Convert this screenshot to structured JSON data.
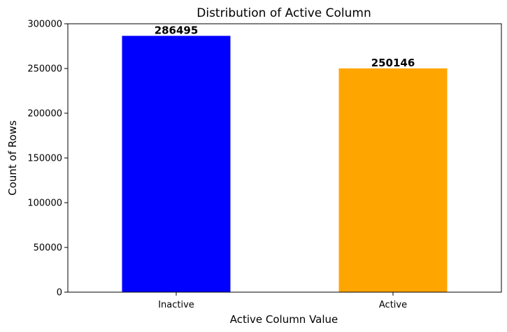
{
  "chart_data": {
    "type": "bar",
    "title": "Distribution of Active Column",
    "xlabel": "Active Column Value",
    "ylabel": "Count of Rows",
    "categories": [
      "Inactive",
      "Active"
    ],
    "values": [
      286495,
      250146
    ],
    "colors": [
      "#0000ff",
      "#ffa500"
    ],
    "ylim": [
      0,
      300000
    ],
    "yticks": [
      0,
      50000,
      100000,
      150000,
      200000,
      250000,
      300000
    ],
    "grid": false,
    "legend": "none"
  }
}
